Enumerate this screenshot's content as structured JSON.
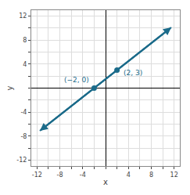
{
  "chart_data": {
    "type": "line",
    "xlabel": "x",
    "ylabel": "y",
    "xlim": [
      -13,
      13
    ],
    "ylim": [
      -13,
      13
    ],
    "xticks": [
      -12,
      {
        "value": -10,
        "label": ""
      },
      -8,
      {
        "value": -6,
        "label": ""
      },
      -4,
      {
        "value": -2,
        "label": ""
      },
      {
        "value": 0,
        "label": ""
      },
      {
        "value": 2,
        "label": ""
      },
      4,
      {
        "value": 6,
        "label": ""
      },
      8,
      {
        "value": 10,
        "label": ""
      },
      12
    ],
    "yticks": [
      -12,
      {
        "value": -10,
        "label": ""
      },
      -8,
      {
        "value": -6,
        "label": ""
      },
      -4,
      {
        "value": -2,
        "label": ""
      },
      {
        "value": 0,
        "label": ""
      },
      {
        "value": 2,
        "label": ""
      },
      4,
      {
        "value": 6,
        "label": ""
      },
      8,
      {
        "value": 10,
        "label": ""
      },
      12
    ],
    "grid": true,
    "series": [
      {
        "type": "line",
        "color": "#1b6b8a",
        "line_style": "solid",
        "x": [
          -11.5,
          11.5
        ],
        "values": [
          -7.125,
          10.125
        ]
      },
      {
        "type": "scatter",
        "color": "#1b6b8a",
        "marker": "circle",
        "x": [
          -2,
          2
        ],
        "values": [
          0,
          3
        ]
      }
    ],
    "annotations": [
      {
        "text": "(−2, 0)",
        "x": -2,
        "y": 0,
        "color": "#1b6b8a"
      },
      {
        "text": "(2, 3)",
        "x": 2,
        "y": 3,
        "color": "#1b6b8a"
      }
    ]
  }
}
